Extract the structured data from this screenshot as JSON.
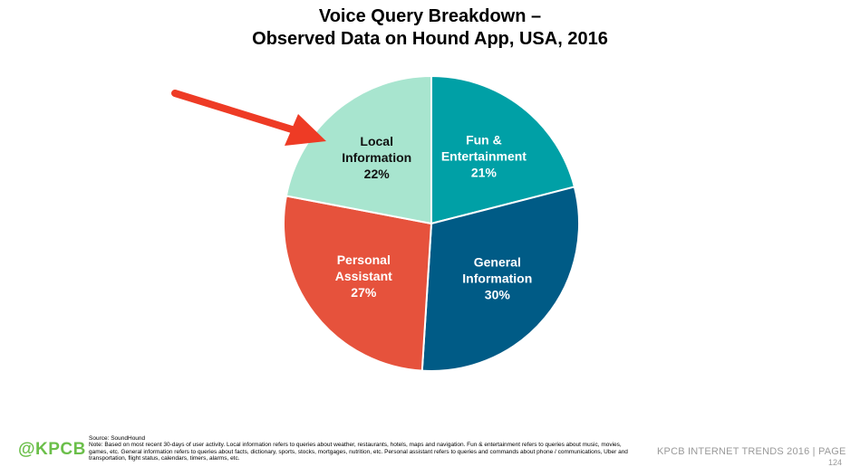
{
  "header": {
    "title_line1": "Voice Query Breakdown –",
    "title_line2": "Observed Data on Hound App, USA, 2016"
  },
  "chart_data": {
    "type": "pie",
    "title": "Voice Query Breakdown – Observed Data on Hound App, USA, 2016",
    "slices": [
      {
        "lines": [
          "Fun &",
          "Entertainment",
          "21%"
        ],
        "value": 21,
        "color": "#00a0a6",
        "text_color": "#ffffff"
      },
      {
        "lines": [
          "General",
          "Information",
          "30%"
        ],
        "value": 30,
        "color": "#005b86",
        "text_color": "#ffffff"
      },
      {
        "lines": [
          "Personal",
          "Assistant",
          "27%"
        ],
        "value": 27,
        "color": "#e6523c",
        "text_color": "#ffffff"
      },
      {
        "lines": [
          "Local",
          "Information",
          "22%"
        ],
        "value": 22,
        "color": "#a8e5cf",
        "text_color": "#111111"
      }
    ]
  },
  "annotation": {
    "arrow_color": "#ee3b25",
    "target": "Local Information"
  },
  "footer": {
    "logo": "@KPCB",
    "source": "Source: SoundHound",
    "note": "Note: Based on most recent 30-days of user activity. Local information refers to queries about weather, restaurants, hotels, maps and navigation. Fun & entertainment refers to queries about music, movies, games, etc. General information refers to queries about facts, dictionary, sports, stocks, mortgages, nutrition, etc. Personal assistant refers to queries and commands about phone / communications, Uber and transportation, flight status, calendars, timers, alarms, etc.",
    "trends": "KPCB INTERNET TRENDS 2016   |   PAGE",
    "page": "124"
  }
}
